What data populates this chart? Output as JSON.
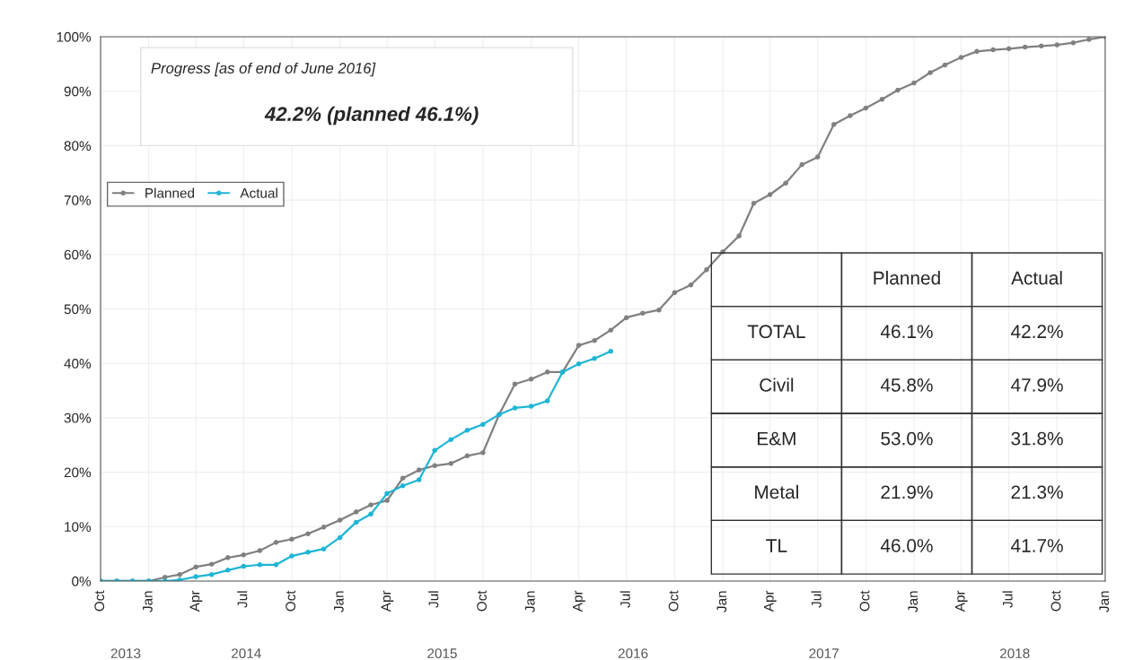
{
  "chart_data": {
    "type": "line",
    "x": [
      "2013-10",
      "2013-11",
      "2013-12",
      "2014-01",
      "2014-02",
      "2014-03",
      "2014-04",
      "2014-05",
      "2014-06",
      "2014-07",
      "2014-08",
      "2014-09",
      "2014-10",
      "2014-11",
      "2014-12",
      "2015-01",
      "2015-02",
      "2015-03",
      "2015-04",
      "2015-05",
      "2015-06",
      "2015-07",
      "2015-08",
      "2015-09",
      "2015-10",
      "2015-11",
      "2015-12",
      "2016-01",
      "2016-02",
      "2016-03",
      "2016-04",
      "2016-05",
      "2016-06",
      "2016-07",
      "2016-08",
      "2016-09",
      "2016-10",
      "2016-11",
      "2016-12",
      "2017-01",
      "2017-02",
      "2017-03",
      "2017-04",
      "2017-05",
      "2017-06",
      "2017-07",
      "2017-08",
      "2017-09",
      "2017-10",
      "2017-11",
      "2017-12",
      "2018-01",
      "2018-02",
      "2018-03",
      "2018-04",
      "2018-05",
      "2018-06",
      "2018-07",
      "2018-08",
      "2018-09",
      "2018-10",
      "2018-11",
      "2018-12",
      "2019-01"
    ],
    "series": [
      {
        "name": "Planned",
        "color": "#808080",
        "values": [
          0,
          0,
          0,
          0,
          0.7,
          1.2,
          2.6,
          3.1,
          4.3,
          4.8,
          5.6,
          7.1,
          7.7,
          8.7,
          9.9,
          11.2,
          12.7,
          14.0,
          14.8,
          18.9,
          20.4,
          21.2,
          21.6,
          23.0,
          23.6,
          30.6,
          36.2,
          37.1,
          38.4,
          38.4,
          43.3,
          44.2,
          46.1,
          48.4,
          49.2,
          49.8,
          53.0,
          54.4,
          57.2,
          60.5,
          63.4,
          69.4,
          71.0,
          73.1,
          76.5,
          77.9,
          83.9,
          85.5,
          86.9,
          88.5,
          90.2,
          91.5,
          93.4,
          94.8,
          96.2,
          97.3,
          97.6,
          97.8,
          98.1,
          98.3,
          98.5,
          98.9,
          99.5,
          100
        ]
      },
      {
        "name": "Actual",
        "color": "#1fb5d5",
        "values": [
          0,
          0,
          0,
          0,
          0,
          0.2,
          0.8,
          1.2,
          2.0,
          2.7,
          3.0,
          3.0,
          4.6,
          5.3,
          5.9,
          8.0,
          10.8,
          12.3,
          16.1,
          17.5,
          18.6,
          24.0,
          26.0,
          27.7,
          28.8,
          30.6,
          31.8,
          32.1,
          33.1,
          38.4,
          39.9,
          40.9,
          42.2,
          null,
          null,
          null,
          null,
          null,
          null,
          null,
          null,
          null,
          null,
          null,
          null,
          null,
          null,
          null,
          null,
          null,
          null,
          null,
          null,
          null,
          null,
          null,
          null,
          null,
          null,
          null,
          null,
          null,
          null,
          null
        ]
      }
    ],
    "xlim": [
      "2013-10",
      "2019-01"
    ],
    "xticks": [
      {
        "value": "2013-10",
        "label": "Oct"
      },
      {
        "value": "2014-01",
        "label": "Jan"
      },
      {
        "value": "2014-04",
        "label": "Apr"
      },
      {
        "value": "2014-07",
        "label": "Jul"
      },
      {
        "value": "2014-10",
        "label": "Oct"
      },
      {
        "value": "2015-01",
        "label": "Jan"
      },
      {
        "value": "2015-04",
        "label": "Apr"
      },
      {
        "value": "2015-07",
        "label": "Jul"
      },
      {
        "value": "2015-10",
        "label": "Oct"
      },
      {
        "value": "2016-01",
        "label": "Jan"
      },
      {
        "value": "2016-04",
        "label": "Apr"
      },
      {
        "value": "2016-07",
        "label": "Jul"
      },
      {
        "value": "2016-10",
        "label": "Oct"
      },
      {
        "value": "2017-01",
        "label": "Jan"
      },
      {
        "value": "2017-04",
        "label": "Apr"
      },
      {
        "value": "2017-07",
        "label": "Jul"
      },
      {
        "value": "2017-10",
        "label": "Oct"
      },
      {
        "value": "2018-01",
        "label": "Jan"
      },
      {
        "value": "2018-04",
        "label": "Apr"
      },
      {
        "value": "2018-07",
        "label": "Jul"
      },
      {
        "value": "2018-10",
        "label": "Oct"
      },
      {
        "value": "2019-01",
        "label": "Jan"
      }
    ],
    "ylim": [
      0,
      100
    ],
    "yticks": [
      {
        "value": 0,
        "label": "0%"
      },
      {
        "value": 10,
        "label": "10%"
      },
      {
        "value": 20,
        "label": "20%"
      },
      {
        "value": 30,
        "label": "30%"
      },
      {
        "value": 40,
        "label": "40%"
      },
      {
        "value": 50,
        "label": "50%"
      },
      {
        "value": 60,
        "label": "60%"
      },
      {
        "value": 70,
        "label": "70%"
      },
      {
        "value": 80,
        "label": "80%"
      },
      {
        "value": 90,
        "label": "90%"
      },
      {
        "value": 100,
        "label": "100%"
      }
    ],
    "grid": true,
    "legend": "top left",
    "marker": "circle",
    "line_style": "solid",
    "annotations": [
      "Progress [as of end of June 2016]",
      "42.2% (planned 46.1%)",
      "Planned",
      "Actual",
      "TOTAL",
      "46.1%",
      "42.2%",
      "Civil",
      "45.8%",
      "47.9%",
      "E&M",
      "53.0%",
      "31.8%",
      "Metal",
      "21.9%",
      "21.3%",
      "TL",
      "46.0%",
      "41.7%",
      "2013",
      "2014",
      "2015",
      "2016",
      "2017",
      "2018"
    ]
  }
}
